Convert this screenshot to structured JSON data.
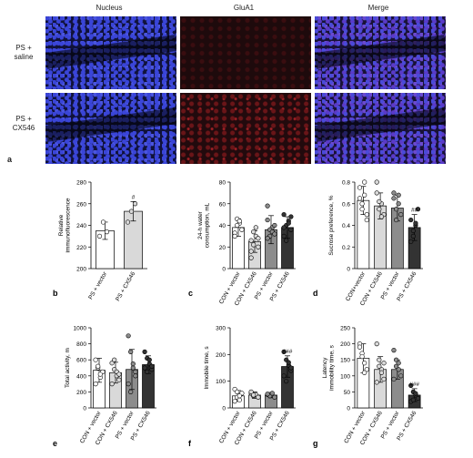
{
  "figure": {
    "column_titles": [
      "Nucleus",
      "GluA1",
      "Merge"
    ],
    "row_labels": [
      "PS +\nsaline",
      "PS +\nCX546"
    ],
    "panel_letters": [
      "a",
      "b",
      "c",
      "d",
      "e",
      "f",
      "g"
    ]
  },
  "chart_data": [
    {
      "type": "scatter-bar",
      "panel": "b",
      "ylabel": "Relative\nimmunofluorescence",
      "categories": [
        "PS + vector",
        "PS + CX546"
      ],
      "values": [
        235,
        253
      ],
      "errors": [
        8,
        9
      ],
      "points": [
        [
          230,
          243,
          234
        ],
        [
          243,
          253,
          260
        ]
      ],
      "bar_fills": [
        "#ffffff",
        "#d9d9d9"
      ],
      "annotations": [
        "",
        "#"
      ],
      "ylim": [
        200,
        280
      ],
      "yticks": [
        200,
        220,
        240,
        260,
        280
      ]
    },
    {
      "type": "scatter-bar",
      "panel": "c",
      "ylabel": "24-h water\nconsumption, mL",
      "categories": [
        "CON + vector",
        "CON + CX546",
        "PS + vector",
        "PS + CX546"
      ],
      "values": [
        38,
        25,
        36,
        38
      ],
      "errors": [
        8,
        10,
        13,
        10
      ],
      "points": [
        [
          33,
          46,
          42,
          36,
          30,
          40,
          44
        ],
        [
          16,
          22,
          30,
          28,
          10,
          34,
          38,
          20,
          26
        ],
        [
          45,
          30,
          38,
          40,
          28,
          36,
          34,
          32,
          58
        ],
        [
          30,
          40,
          44,
          36,
          50,
          26,
          42,
          48,
          38
        ]
      ],
      "bar_fills": [
        "#ffffff",
        "#d9d9d9",
        "#8c8c8c",
        "#333333"
      ],
      "annotations": [
        "",
        "",
        "",
        ""
      ],
      "ylim": [
        0,
        80
      ],
      "yticks": [
        0,
        20,
        40,
        60,
        80
      ]
    },
    {
      "type": "scatter-bar",
      "panel": "d",
      "ylabel": "Sucrose preference, %",
      "categories": [
        "CON+vector",
        "CON + CX546",
        "PS + vector",
        "PS + CX546"
      ],
      "values": [
        0.63,
        0.58,
        0.56,
        0.38
      ],
      "errors": [
        0.13,
        0.12,
        0.12,
        0.12
      ],
      "points": [
        [
          0.75,
          0.6,
          0.68,
          0.5,
          0.65,
          0.55,
          0.8,
          0.45
        ],
        [
          0.7,
          0.55,
          0.6,
          0.5,
          0.8,
          0.62,
          0.48
        ],
        [
          0.65,
          0.55,
          0.6,
          0.5,
          0.7,
          0.45,
          0.68
        ],
        [
          0.45,
          0.3,
          0.4,
          0.55,
          0.25,
          0.35,
          0.42
        ]
      ],
      "bar_fills": [
        "#ffffff",
        "#d9d9d9",
        "#8c8c8c",
        "#333333"
      ],
      "annotations": [
        "",
        "",
        "",
        "##"
      ],
      "ylim": [
        0,
        0.8
      ],
      "yticks": [
        0,
        0.2,
        0.4,
        0.6,
        0.8
      ]
    },
    {
      "type": "scatter-bar",
      "panel": "e",
      "ylabel": "Total activity, m",
      "categories": [
        "CON + vector",
        "CON + CX546",
        "PS + vector",
        "PS + CX546"
      ],
      "values": [
        470,
        440,
        480,
        540
      ],
      "errors": [
        150,
        130,
        250,
        110
      ],
      "points": [
        [
          600,
          500,
          380,
          450,
          300,
          520,
          420
        ],
        [
          560,
          480,
          400,
          350,
          300,
          600,
          450,
          420
        ],
        [
          900,
          700,
          500,
          400,
          300,
          200,
          550,
          450
        ],
        [
          700,
          620,
          550,
          480,
          500,
          450,
          600,
          520
        ]
      ],
      "bar_fills": [
        "#ffffff",
        "#d9d9d9",
        "#8c8c8c",
        "#333333"
      ],
      "annotations": [
        "",
        "",
        "",
        ""
      ],
      "ylim": [
        0,
        1000
      ],
      "yticks": [
        0,
        200,
        400,
        600,
        800,
        1000
      ]
    },
    {
      "type": "scatter-bar",
      "panel": "f",
      "ylabel": "Immobile time, s",
      "categories": [
        "CON + vector",
        "CON + CX546",
        "PS + vector",
        "PS + CX546"
      ],
      "values": [
        45,
        48,
        48,
        155
      ],
      "errors": [
        20,
        12,
        10,
        40
      ],
      "points": [
        [
          70,
          40,
          30,
          55,
          25,
          60,
          45
        ],
        [
          55,
          45,
          50,
          40,
          60,
          48
        ],
        [
          50,
          45,
          55,
          40,
          52
        ],
        [
          210,
          180,
          160,
          140,
          120,
          100,
          170,
          150
        ]
      ],
      "bar_fills": [
        "#ffffff",
        "#d9d9d9",
        "#8c8c8c",
        "#333333"
      ],
      "annotations": [
        "",
        "",
        "",
        "###"
      ],
      "ylim": [
        0,
        300
      ],
      "yticks": [
        0,
        100,
        200,
        300
      ]
    },
    {
      "type": "scatter-bar",
      "panel": "g",
      "ylabel": "Latency\nimmobility time, s",
      "categories": [
        "CON + vector",
        "CON + CX546",
        "PS + vector",
        "PS + CX546"
      ],
      "values": [
        155,
        120,
        120,
        40
      ],
      "errors": [
        45,
        40,
        30,
        20
      ],
      "points": [
        [
          200,
          170,
          140,
          120,
          190,
          160,
          110
        ],
        [
          200,
          150,
          120,
          90,
          80,
          130,
          110,
          140
        ],
        [
          180,
          150,
          120,
          100,
          90,
          130,
          140
        ],
        [
          70,
          50,
          40,
          30,
          20,
          25,
          45
        ]
      ],
      "bar_fills": [
        "#ffffff",
        "#d9d9d9",
        "#8c8c8c",
        "#333333"
      ],
      "annotations": [
        "",
        "",
        "",
        "###"
      ],
      "ylim": [
        0,
        250
      ],
      "yticks": [
        0,
        50,
        100,
        150,
        200,
        250
      ]
    }
  ]
}
